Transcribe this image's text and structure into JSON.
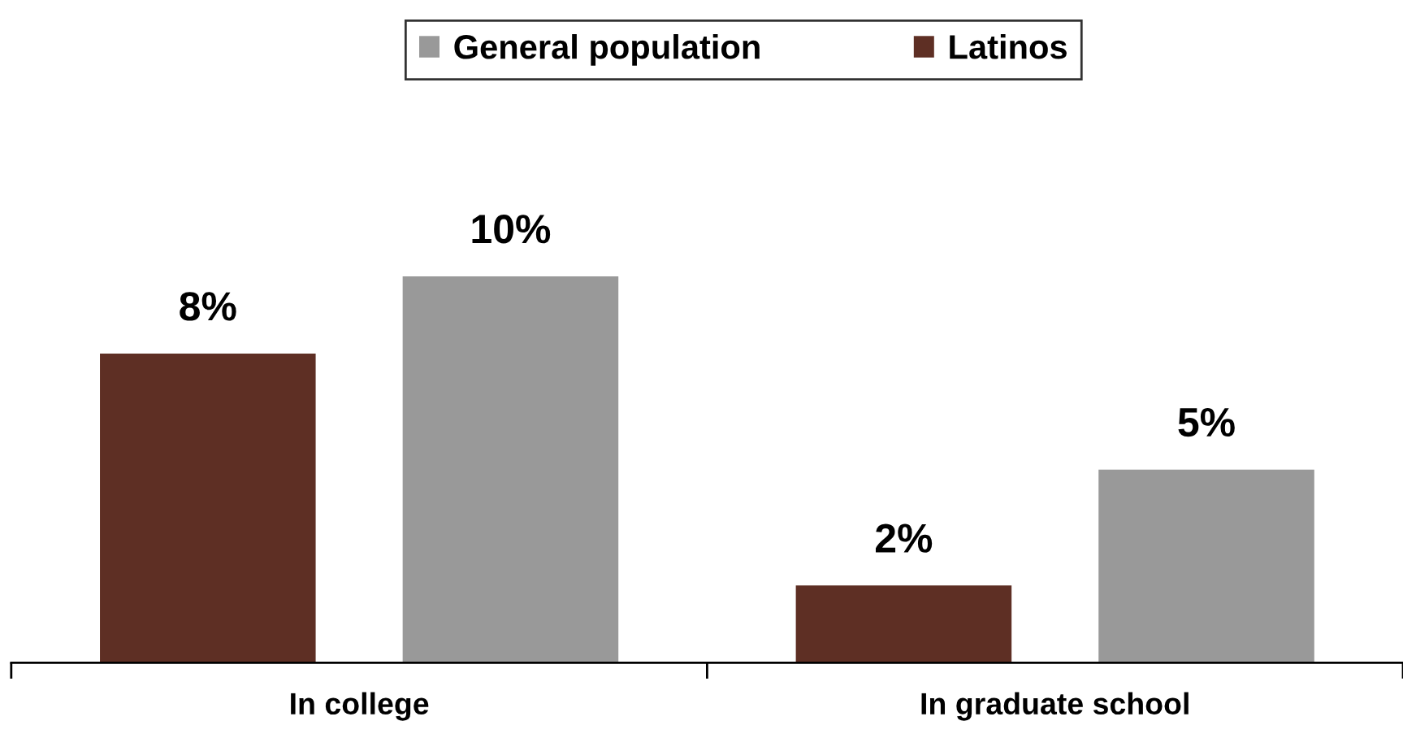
{
  "chart_data": {
    "type": "bar",
    "categories": [
      "In college",
      "In graduate school"
    ],
    "series": [
      {
        "name": "Latinos",
        "color": "#5e2f24",
        "values": [
          8,
          2
        ],
        "value_labels": [
          "8%",
          "2%"
        ]
      },
      {
        "name": "General population",
        "color": "#999999",
        "values": [
          10,
          5
        ],
        "value_labels": [
          "10%",
          "5%"
        ]
      }
    ],
    "legend": "top",
    "grid": false
  }
}
